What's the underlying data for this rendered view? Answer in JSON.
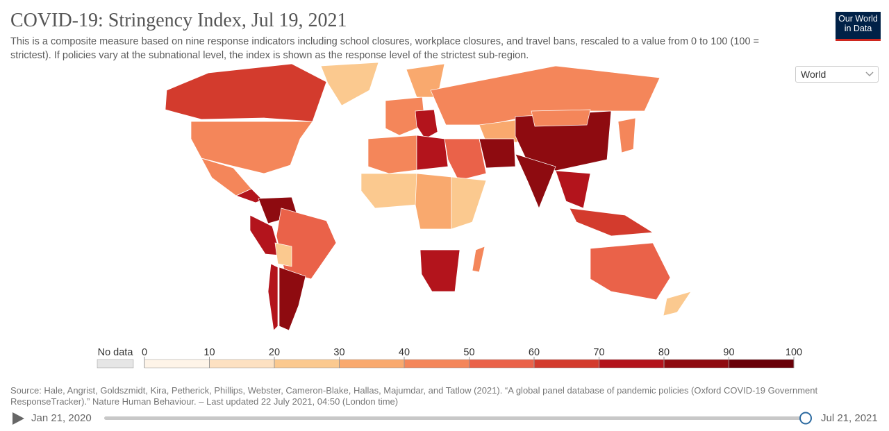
{
  "header": {
    "title": "COVID-19: Stringency Index, Jul 19, 2021",
    "subtitle": "This is a composite measure based on nine response indicators including school closures, workplace closures, and travel bans, rescaled to a value from 0 to 100 (100 = strictest). If policies vary at the subnational level, the index is shown as the response level of the strictest sub-region.",
    "logo": "Our World in Data"
  },
  "region_select": "World",
  "map": {
    "values": [
      65,
      45,
      20,
      45,
      72,
      82,
      55,
      72,
      25,
      85,
      78,
      48,
      70,
      35,
      40,
      32,
      82,
      85,
      82,
      50,
      45,
      75,
      20,
      30,
      25,
      78,
      70,
      65,
      45,
      55,
      25,
      42,
      40
    ],
    "legend": {
      "no_data": "No data",
      "bins": [
        0,
        10,
        20,
        30,
        40,
        50,
        60,
        70,
        80,
        90,
        100
      ],
      "colors": [
        "#fef4e8",
        "#fde1c2",
        "#fbc98f",
        "#f9a96e",
        "#f4865a",
        "#ea6249",
        "#d33b2d",
        "#b3141c",
        "#8e0b10",
        "#690008"
      ]
    }
  },
  "source": "Source: Hale, Angrist, Goldszmidt, Kira, Petherick, Phillips, Webster, Cameron-Blake, Hallas, Majumdar, and Tatlow (2021). “A global panel database of pandemic policies (Oxford COVID-19 Government ResponseTracker).” Nature Human Behaviour. – Last updated 22 July 2021, 04:50 (London time)",
  "timeline": {
    "start": "Jan 21, 2020",
    "end": "Jul 21, 2021"
  }
}
